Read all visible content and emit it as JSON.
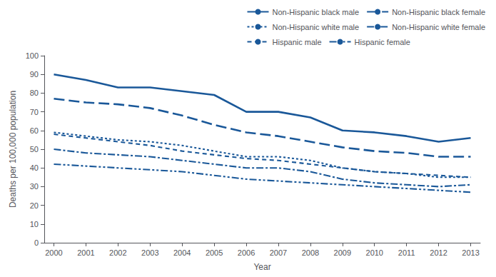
{
  "chart_data": {
    "type": "line",
    "xlabel": "Year",
    "ylabel": "Deaths per 100,000 population",
    "x": [
      2000,
      2001,
      2002,
      2003,
      2004,
      2005,
      2006,
      2007,
      2008,
      2009,
      2010,
      2011,
      2012,
      2013
    ],
    "series": [
      {
        "name": "Non-Hispanic black male",
        "color": "#1a5899",
        "line_style": "solid",
        "values": [
          90,
          87,
          83,
          83,
          81,
          79,
          70,
          70,
          67,
          60,
          59,
          57,
          54,
          56
        ]
      },
      {
        "name": "Non-Hispanic black female",
        "color": "#1a5899",
        "line_style": "longdash",
        "values": [
          77,
          75,
          74,
          72,
          68,
          63,
          59,
          57,
          54,
          51,
          49,
          48,
          46,
          46
        ]
      },
      {
        "name": "Non-Hispanic white male",
        "color": "#1a5899",
        "line_style": "dotted",
        "values": [
          59,
          57,
          55,
          54,
          52,
          49,
          46,
          46,
          44,
          40,
          38,
          37,
          35,
          35
        ]
      },
      {
        "name": "Non-Hispanic white female",
        "color": "#1a5899",
        "line_style": "dashdot",
        "values": [
          50,
          48,
          47,
          46,
          44,
          42,
          40,
          40,
          38,
          34,
          32,
          31,
          30,
          31
        ]
      },
      {
        "name": "Hispanic male",
        "color": "#1a5899",
        "line_style": "dashed",
        "values": [
          58,
          56,
          54,
          52,
          49,
          47,
          45,
          44,
          42,
          40,
          38,
          37,
          36,
          35
        ]
      },
      {
        "name": "Hispanic female",
        "color": "#1a5899",
        "line_style": "dashdotdot",
        "values": [
          42,
          41,
          40,
          39,
          38,
          36,
          34,
          33,
          32,
          31,
          30,
          29,
          28,
          27
        ]
      }
    ],
    "xlim": [
      1999.7,
      2013.3
    ],
    "xticks": [
      2000,
      2001,
      2002,
      2003,
      2004,
      2005,
      2006,
      2007,
      2008,
      2009,
      2010,
      2011,
      2012,
      2013
    ],
    "ylim": [
      0,
      100
    ],
    "yticks": [
      0,
      10,
      20,
      30,
      40,
      50,
      60,
      70,
      80,
      90,
      100
    ],
    "grid": false,
    "legend": "upper right"
  }
}
